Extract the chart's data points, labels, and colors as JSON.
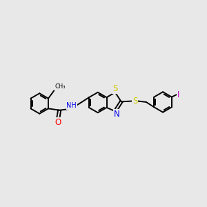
{
  "background_color": "#e8e8e8",
  "bond_color": "#000000",
  "atom_colors": {
    "S": "#cccc00",
    "N": "#0000ee",
    "O": "#ff0000",
    "I": "#cc00cc",
    "H": "#5588aa",
    "C": "#000000"
  },
  "lw": 1.4,
  "fs": 7.5,
  "figsize": [
    3.0,
    3.0
  ],
  "dpi": 100,
  "xlim": [
    0,
    10
  ],
  "ylim": [
    1,
    9
  ]
}
